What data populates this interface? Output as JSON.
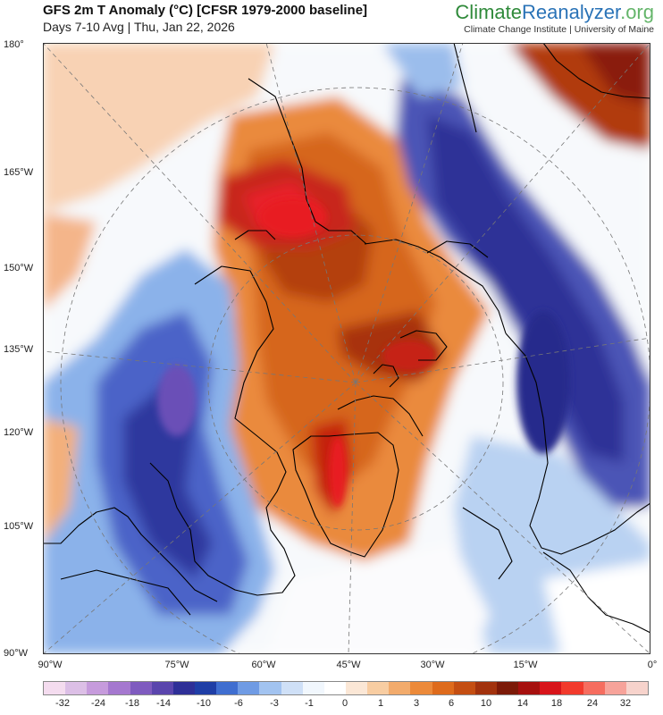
{
  "header": {
    "title": "GFS 2m T Anomaly (°C) [CFSR 1979-2000 baseline]",
    "subtitle": "Days 7-10 Avg | Thu, Jan 22, 2026"
  },
  "brand": {
    "name_part1": "Climate",
    "name_part2": "Reanalyzer",
    "name_part3": ".org",
    "institution": "Climate Change Institute | University of Maine"
  },
  "axes": {
    "y_labels": [
      "180°",
      "165°W",
      "150°W",
      "135°W",
      "120°W",
      "105°W",
      "90°W"
    ],
    "x_labels": [
      "90°W",
      "75°W",
      "60°W",
      "45°W",
      "30°W",
      "15°W",
      "0°"
    ]
  },
  "colorbar": {
    "labels": [
      "-32",
      "-24",
      "-18",
      "-14",
      "-10",
      "-6",
      "-3",
      "-1",
      "0",
      "1",
      "3",
      "6",
      "10",
      "14",
      "18",
      "24",
      "32"
    ],
    "colors": [
      "#f4dcef",
      "#dcbfe6",
      "#c69bdc",
      "#a578cf",
      "#7f5bbf",
      "#5a45ad",
      "#2e2f97",
      "#1f3ea6",
      "#3f6ed0",
      "#6f9be4",
      "#a2c3f0",
      "#cfe0f7",
      "#f1f7fd",
      "#ffffff",
      "#fbe7d6",
      "#f8cda2",
      "#f2ab6c",
      "#ec8a3a",
      "#de6b1c",
      "#c44e12",
      "#a2320d",
      "#7c1a08",
      "#a6100e",
      "#d8141a",
      "#f23a2c",
      "#f66d5f",
      "#f7a39a",
      "#f7d3cc"
    ]
  }
}
